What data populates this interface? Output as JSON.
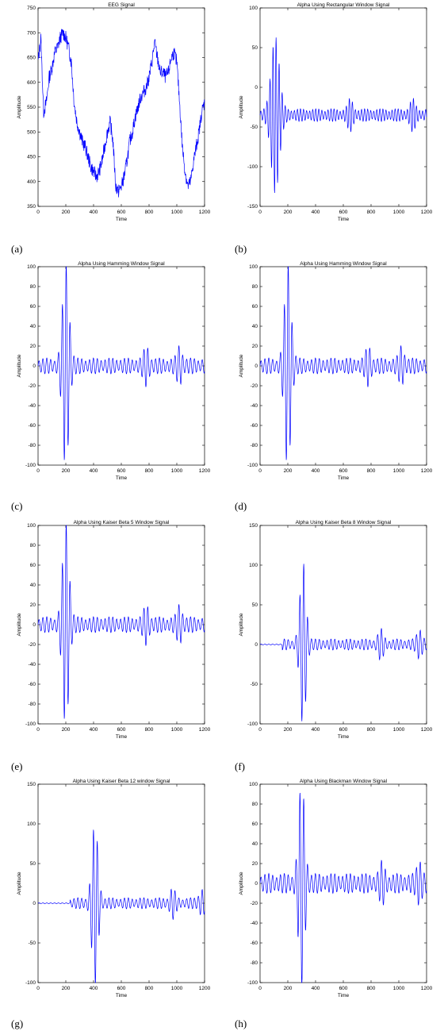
{
  "captions": [
    "(a)",
    "(b)",
    "(c)",
    "(d)",
    "(e)",
    "(f)",
    "(g)",
    "(h)"
  ],
  "style": {
    "line_color": "#0000ff",
    "axis_color": "#000000",
    "background": "#ffffff"
  },
  "chart_data": [
    {
      "type": "line",
      "title": "EEG Signal",
      "xlabel": "Time",
      "ylabel": "Amplitude",
      "xlim": [
        0,
        1200
      ],
      "ylim": [
        350,
        750
      ],
      "xticks": [
        0,
        200,
        400,
        600,
        800,
        1000,
        1200
      ],
      "yticks": [
        350,
        400,
        450,
        500,
        550,
        600,
        650,
        700,
        750
      ],
      "grid": false,
      "series": [
        {
          "x": [
            0,
            20,
            40,
            60,
            80,
            100,
            120,
            140,
            160,
            180,
            200,
            220,
            240,
            260,
            280,
            300,
            320,
            340,
            360,
            380,
            400,
            420,
            440,
            460,
            480,
            500,
            520,
            540,
            560,
            580,
            600,
            620,
            640,
            660,
            680,
            700,
            720,
            740,
            760,
            780,
            800,
            820,
            840,
            860,
            880,
            900,
            920,
            940,
            960,
            980,
            1000,
            1020,
            1040,
            1060,
            1080,
            1100,
            1120,
            1140,
            1160,
            1180,
            1200
          ],
          "y": [
            640,
            690,
            540,
            560,
            610,
            630,
            660,
            670,
            690,
            700,
            690,
            670,
            640,
            560,
            520,
            500,
            480,
            470,
            450,
            430,
            420,
            410,
            420,
            440,
            470,
            500,
            520,
            480,
            390,
            380,
            390,
            410,
            440,
            480,
            500,
            530,
            550,
            570,
            580,
            590,
            610,
            640,
            680,
            650,
            620,
            620,
            610,
            620,
            650,
            660,
            640,
            560,
            470,
            420,
            390,
            400,
            440,
            470,
            500,
            540,
            560
          ]
        }
      ]
    },
    {
      "type": "line",
      "title": "Alpha Using Rectangular Window Signal",
      "xlabel": "Time",
      "ylabel": "Amplitude",
      "xlim": [
        0,
        1200
      ],
      "ylim": [
        -150,
        100
      ],
      "xticks": [
        0,
        200,
        400,
        600,
        800,
        1000,
        1200
      ],
      "yticks": [
        -150,
        -100,
        -50,
        0,
        50,
        100
      ],
      "grid": false,
      "series": [
        {
          "envelope": {
            "offset": -35,
            "peak_center": 110,
            "peak_amp": 95,
            "peak_width": 40,
            "base_amp": 8,
            "period": 22,
            "bumps": [
              [
                650,
                14
              ],
              [
                1100,
                14
              ]
            ]
          }
        }
      ]
    },
    {
      "type": "line",
      "title": "Alpha Using Hamming Window Signal",
      "xlabel": "Time",
      "ylabel": "Amplitude",
      "xlim": [
        0,
        1200
      ],
      "ylim": [
        -100,
        100
      ],
      "xticks": [
        0,
        200,
        400,
        600,
        800,
        1000,
        1200
      ],
      "yticks": [
        -100,
        -80,
        -60,
        -40,
        -20,
        0,
        20,
        40,
        60,
        80,
        100
      ],
      "grid": false,
      "series": [
        {
          "envelope": {
            "offset": 0,
            "peak_center": 200,
            "peak_amp": 98,
            "peak_width": 32,
            "base_amp": 8,
            "period": 28,
            "bumps": [
              [
                780,
                14
              ],
              [
                1020,
                14
              ]
            ]
          }
        }
      ]
    },
    {
      "type": "line",
      "title": "Alpha Using Hamming Window Signal",
      "xlabel": "Time",
      "ylabel": "Amplitude",
      "xlim": [
        0,
        1200
      ],
      "ylim": [
        -100,
        100
      ],
      "xticks": [
        0,
        200,
        400,
        600,
        800,
        1000,
        1200
      ],
      "yticks": [
        -100,
        -80,
        -60,
        -40,
        -20,
        0,
        20,
        40,
        60,
        80,
        100
      ],
      "grid": false,
      "series": [
        {
          "envelope": {
            "offset": 0,
            "peak_center": 200,
            "peak_amp": 98,
            "peak_width": 32,
            "base_amp": 8,
            "period": 28,
            "bumps": [
              [
                780,
                14
              ],
              [
                1020,
                14
              ]
            ]
          }
        }
      ]
    },
    {
      "type": "line",
      "title": "Alpha Using Kaiser Beta 5 Window Signal",
      "xlabel": "Time",
      "ylabel": "Amplitude",
      "xlim": [
        0,
        1200
      ],
      "ylim": [
        -100,
        100
      ],
      "xticks": [
        0,
        200,
        400,
        600,
        800,
        1000,
        1200
      ],
      "yticks": [
        -100,
        -80,
        -60,
        -40,
        -20,
        0,
        20,
        40,
        60,
        80,
        100
      ],
      "grid": false,
      "series": [
        {
          "envelope": {
            "offset": 0,
            "peak_center": 200,
            "peak_amp": 98,
            "peak_width": 32,
            "base_amp": 8,
            "period": 28,
            "bumps": [
              [
                780,
                14
              ],
              [
                1020,
                14
              ]
            ]
          }
        }
      ]
    },
    {
      "type": "line",
      "title": "Alpha Using Kaiser Beta 8 Window Signal",
      "xlabel": "Time",
      "ylabel": "Amplitude",
      "xlim": [
        0,
        1200
      ],
      "ylim": [
        -100,
        150
      ],
      "xticks": [
        0,
        200,
        400,
        600,
        800,
        1000,
        1200
      ],
      "yticks": [
        -100,
        -50,
        0,
        50,
        100,
        150
      ],
      "grid": false,
      "series": [
        {
          "envelope": {
            "offset": 0,
            "peak_center": 310,
            "peak_amp": 98,
            "peak_width": 30,
            "base_amp": 7,
            "period": 28,
            "start": 160,
            "bumps": [
              [
                870,
                14
              ],
              [
                1150,
                14
              ]
            ]
          }
        }
      ]
    },
    {
      "type": "line",
      "title": "Alpha Using Kaiser Beta 12 window Signal",
      "xlabel": "Time",
      "ylabel": "Amplitude",
      "xlim": [
        0,
        1200
      ],
      "ylim": [
        -100,
        150
      ],
      "xticks": [
        0,
        200,
        400,
        600,
        800,
        1000,
        1200
      ],
      "yticks": [
        -100,
        -50,
        0,
        50,
        100,
        150
      ],
      "grid": false,
      "series": [
        {
          "envelope": {
            "offset": 0,
            "peak_center": 410,
            "peak_amp": 98,
            "peak_width": 30,
            "base_amp": 7,
            "period": 28,
            "start": 230,
            "bumps": [
              [
                970,
                14
              ],
              [
                1180,
                12
              ]
            ]
          }
        }
      ]
    },
    {
      "type": "line",
      "title": "Alpha Using Blackman Window Signal",
      "xlabel": "Time",
      "ylabel": "Amplitude",
      "xlim": [
        0,
        1200
      ],
      "ylim": [
        -100,
        100
      ],
      "xticks": [
        0,
        200,
        400,
        600,
        800,
        1000,
        1200
      ],
      "yticks": [
        -100,
        -80,
        -60,
        -40,
        -20,
        0,
        20,
        40,
        60,
        80,
        100
      ],
      "grid": false,
      "series": [
        {
          "envelope": {
            "offset": 0,
            "peak_center": 300,
            "peak_amp": 98,
            "peak_width": 30,
            "base_amp": 10,
            "period": 28,
            "bumps": [
              [
                880,
                14
              ],
              [
                1150,
                16
              ]
            ]
          }
        }
      ]
    }
  ]
}
